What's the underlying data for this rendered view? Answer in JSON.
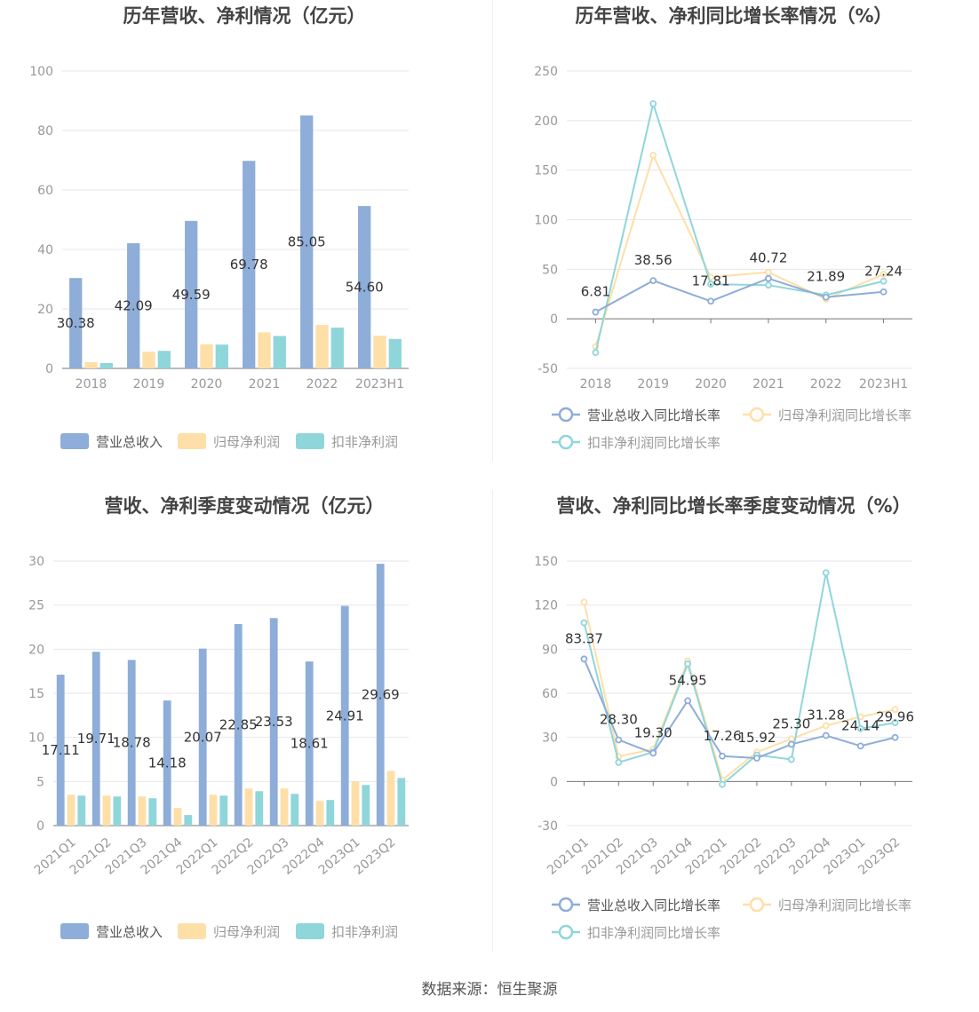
{
  "source_label": "数据来源：恒生聚源",
  "colors": {
    "revenue": "#8eadd8",
    "net_profit": "#fedfa8",
    "deducted_net_profit": "#8fd6da",
    "grid": "#e6e6ee",
    "axis_text": "#999999",
    "label_text": "#333333"
  },
  "chart_data": [
    {
      "type": "bar",
      "title": "历年营收、净利情况（亿元）",
      "categories": [
        "2018",
        "2019",
        "2020",
        "2021",
        "2022",
        "2023H1"
      ],
      "ylim": [
        0,
        100
      ],
      "yticks": [
        0,
        20,
        40,
        60,
        80,
        100
      ],
      "series": [
        {
          "name": "营业总收入",
          "values": [
            30.38,
            42.09,
            49.59,
            69.78,
            85.05,
            54.6
          ],
          "labels": [
            "30.38",
            "42.09",
            "49.59",
            "69.78",
            "85.05",
            "54.60"
          ]
        },
        {
          "name": "归母净利润",
          "values": [
            2.1,
            5.6,
            8.1,
            12.1,
            14.6,
            11.0
          ]
        },
        {
          "name": "扣非净利润",
          "values": [
            1.8,
            5.9,
            8.0,
            10.9,
            13.7,
            9.9
          ]
        }
      ],
      "grid": true,
      "legend": "bottom"
    },
    {
      "type": "line",
      "title": "历年营收、净利同比增长率情况（%）",
      "categories": [
        "2018",
        "2019",
        "2020",
        "2021",
        "2022",
        "2023H1"
      ],
      "ylim": [
        -50,
        250
      ],
      "yticks": [
        -50,
        0,
        50,
        100,
        150,
        200,
        250
      ],
      "series": [
        {
          "name": "营业总收入同比增长率",
          "values": [
            6.81,
            38.56,
            17.81,
            40.72,
            21.89,
            27.24
          ],
          "labels": [
            "6.81",
            "38.56",
            "17.81",
            "40.72",
            "21.89",
            "27.24"
          ]
        },
        {
          "name": "归母净利润同比增长率",
          "values": [
            -28,
            165,
            42,
            47,
            20,
            45
          ]
        },
        {
          "name": "扣非净利润同比增长率",
          "values": [
            -34,
            217,
            35,
            34,
            24,
            38
          ]
        }
      ],
      "grid": true,
      "legend": "bottom"
    },
    {
      "type": "bar",
      "title": "营收、净利季度变动情况（亿元）",
      "categories": [
        "2021Q1",
        "2021Q2",
        "2021Q3",
        "2021Q4",
        "2022Q1",
        "2022Q2",
        "2022Q3",
        "2022Q4",
        "2023Q1",
        "2023Q2"
      ],
      "ylim": [
        0,
        30
      ],
      "yticks": [
        0,
        5,
        10,
        15,
        20,
        25,
        30
      ],
      "series": [
        {
          "name": "营业总收入",
          "values": [
            17.11,
            19.71,
            18.78,
            14.18,
            20.07,
            22.85,
            23.53,
            18.61,
            24.91,
            29.69
          ],
          "labels": [
            "17.11",
            "19.71",
            "18.78",
            "14.18",
            "20.07",
            "22.85",
            "23.53",
            "18.61",
            "24.91",
            "29.69"
          ]
        },
        {
          "name": "归母净利润",
          "values": [
            3.5,
            3.4,
            3.3,
            2.0,
            3.5,
            4.2,
            4.2,
            2.8,
            5.0,
            6.2
          ]
        },
        {
          "name": "扣非净利润",
          "values": [
            3.4,
            3.3,
            3.1,
            1.2,
            3.4,
            3.9,
            3.6,
            2.9,
            4.6,
            5.4
          ]
        }
      ],
      "grid": true,
      "legend": "bottom"
    },
    {
      "type": "line",
      "title": "营收、净利同比增长率季度变动情况（%）",
      "categories": [
        "2021Q1",
        "2021Q2",
        "2021Q3",
        "2021Q4",
        "2022Q1",
        "2022Q2",
        "2022Q3",
        "2022Q4",
        "2023Q1",
        "2023Q2"
      ],
      "ylim": [
        -30,
        150
      ],
      "yticks": [
        -30,
        0,
        30,
        60,
        90,
        120,
        150
      ],
      "series": [
        {
          "name": "营业总收入同比增长率",
          "values": [
            83.37,
            28.3,
            19.3,
            54.95,
            17.26,
            15.92,
            25.3,
            31.28,
            24.14,
            29.96
          ],
          "labels": [
            "83.37",
            "28.30",
            "19.30",
            "54.95",
            "17.26",
            "15.92",
            "25.30",
            "31.28",
            "24.14",
            "29.96"
          ]
        },
        {
          "name": "归母净利润同比增长率",
          "values": [
            122,
            17,
            22,
            82,
            1,
            20,
            29,
            38,
            44,
            49
          ]
        },
        {
          "name": "扣非净利润同比增长率",
          "values": [
            108,
            13,
            20,
            80,
            -2,
            18,
            15,
            142,
            36,
            40
          ]
        }
      ],
      "grid": true,
      "legend": "bottom"
    }
  ]
}
